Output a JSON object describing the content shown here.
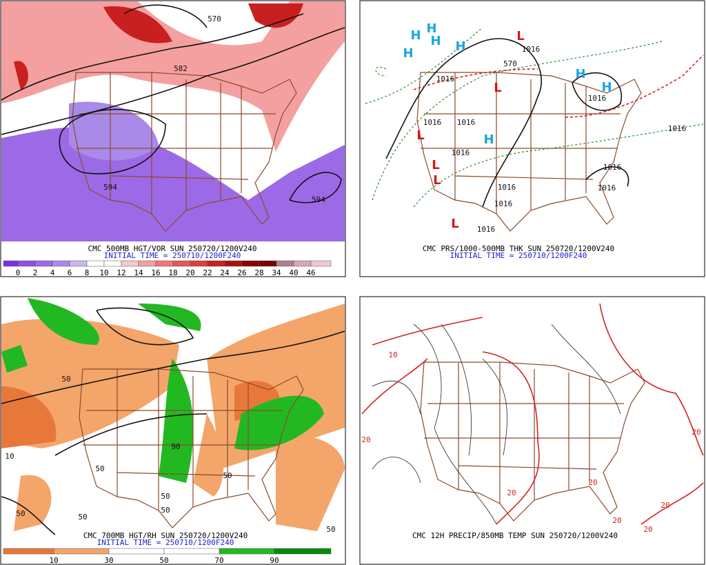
{
  "panels": [
    {
      "title": "CMC 500MB HGT/VOR SUN 250720/1200V240",
      "initial_time": "INITIAL TIME = 250710/1200F240",
      "colorbar": {
        "labels": [
          0,
          2,
          4,
          6,
          8,
          10,
          12,
          14,
          16,
          18,
          20,
          22,
          24,
          26,
          28,
          34,
          40,
          46
        ],
        "colors": [
          "#7b2fe0",
          "#8f4fe6",
          "#9c6ae6",
          "#a98ae8",
          "#c7b8f2",
          "#ffffff",
          "#ffffff",
          "#f7c8c8",
          "#f4a0a0",
          "#f07878",
          "#e85858",
          "#e03c3c",
          "#c82020",
          "#b01010",
          "#900000",
          "#780000",
          "#b08088",
          "#d8a8b8",
          "#f0c8d8"
        ]
      },
      "contour_labels": [
        "570",
        "582",
        "594",
        "594"
      ]
    },
    {
      "title": "CMC PRS/1000-500MB THK SUN 250720/1200V240",
      "initial_time": "INITIAL TIME = 250710/1200F240",
      "contour_labels": [
        "1016",
        "1016",
        "1016",
        "1016",
        "1016",
        "1016",
        "1016",
        "1016",
        "1016",
        "1016",
        "1016",
        "1016",
        "570"
      ],
      "highs": [
        "H",
        "H",
        "H",
        "H",
        "H",
        "H",
        "H",
        "H"
      ],
      "lows": [
        "L",
        "L",
        "L",
        "L",
        "L",
        "L"
      ]
    },
    {
      "title": "CMC 700MB HGT/RH SUN 250720/1200V240",
      "initial_time": "INITIAL TIME = 250710/1200F240",
      "colorbar": {
        "labels": [
          10,
          30,
          50,
          70,
          90
        ],
        "colors": [
          "#e8783a",
          "#f4a56a",
          "#ffffff",
          "#ffffff",
          "#22b822",
          "#0a8a0a"
        ]
      },
      "contour_labels": [
        "50",
        "50",
        "50",
        "50",
        "50",
        "50",
        "50",
        "50",
        "10",
        "90"
      ]
    },
    {
      "title": "CMC 12H PRECIP/850MB TEMP SUN 250720/1200V240",
      "contour_labels": [
        "20",
        "20",
        "20",
        "20",
        "20",
        "20",
        "20",
        "10"
      ]
    }
  ]
}
